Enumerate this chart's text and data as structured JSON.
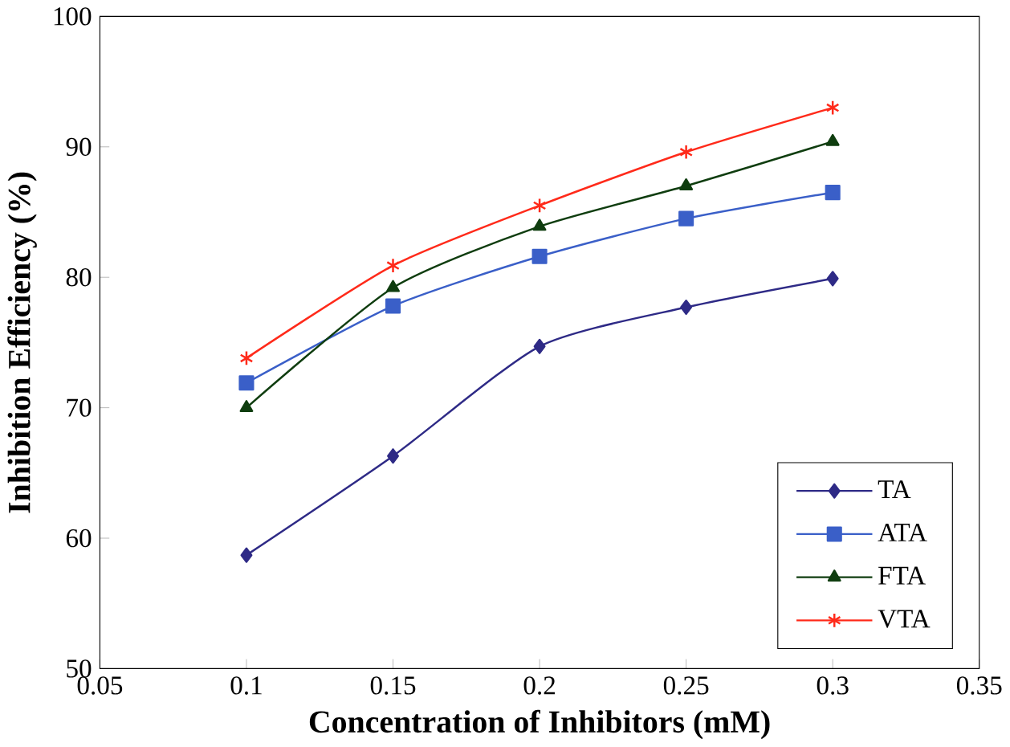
{
  "chart_data": {
    "type": "line",
    "xlabel": "Concentration of Inhibitors (mM)",
    "ylabel": "Inhibition Efficiency (%)",
    "x": [
      0.1,
      0.15,
      0.2,
      0.25,
      0.3
    ],
    "xlim": [
      0.05,
      0.35
    ],
    "xticks": [
      0.05,
      0.1,
      0.15,
      0.2,
      0.25,
      0.3,
      0.35
    ],
    "ylim": [
      50,
      100
    ],
    "yticks": [
      50,
      60,
      70,
      80,
      90,
      100
    ],
    "grid": false,
    "legend": "bottom right",
    "line_style": "solid",
    "series": [
      {
        "name": "TA",
        "color": "#2e2a86",
        "marker": "diamond",
        "values": [
          58.7,
          66.3,
          74.7,
          77.7,
          79.9
        ]
      },
      {
        "name": "ATA",
        "color": "#3a5fc8",
        "marker": "square",
        "values": [
          71.9,
          77.8,
          81.6,
          84.5,
          86.5
        ]
      },
      {
        "name": "FTA",
        "color": "#0f3d0f",
        "marker": "triangle",
        "values": [
          70.0,
          79.2,
          83.9,
          87.0,
          90.4
        ]
      },
      {
        "name": "VTA",
        "color": "#ff2a1a",
        "marker": "cross",
        "values": [
          73.8,
          80.9,
          85.5,
          89.6,
          93.0
        ]
      }
    ]
  }
}
